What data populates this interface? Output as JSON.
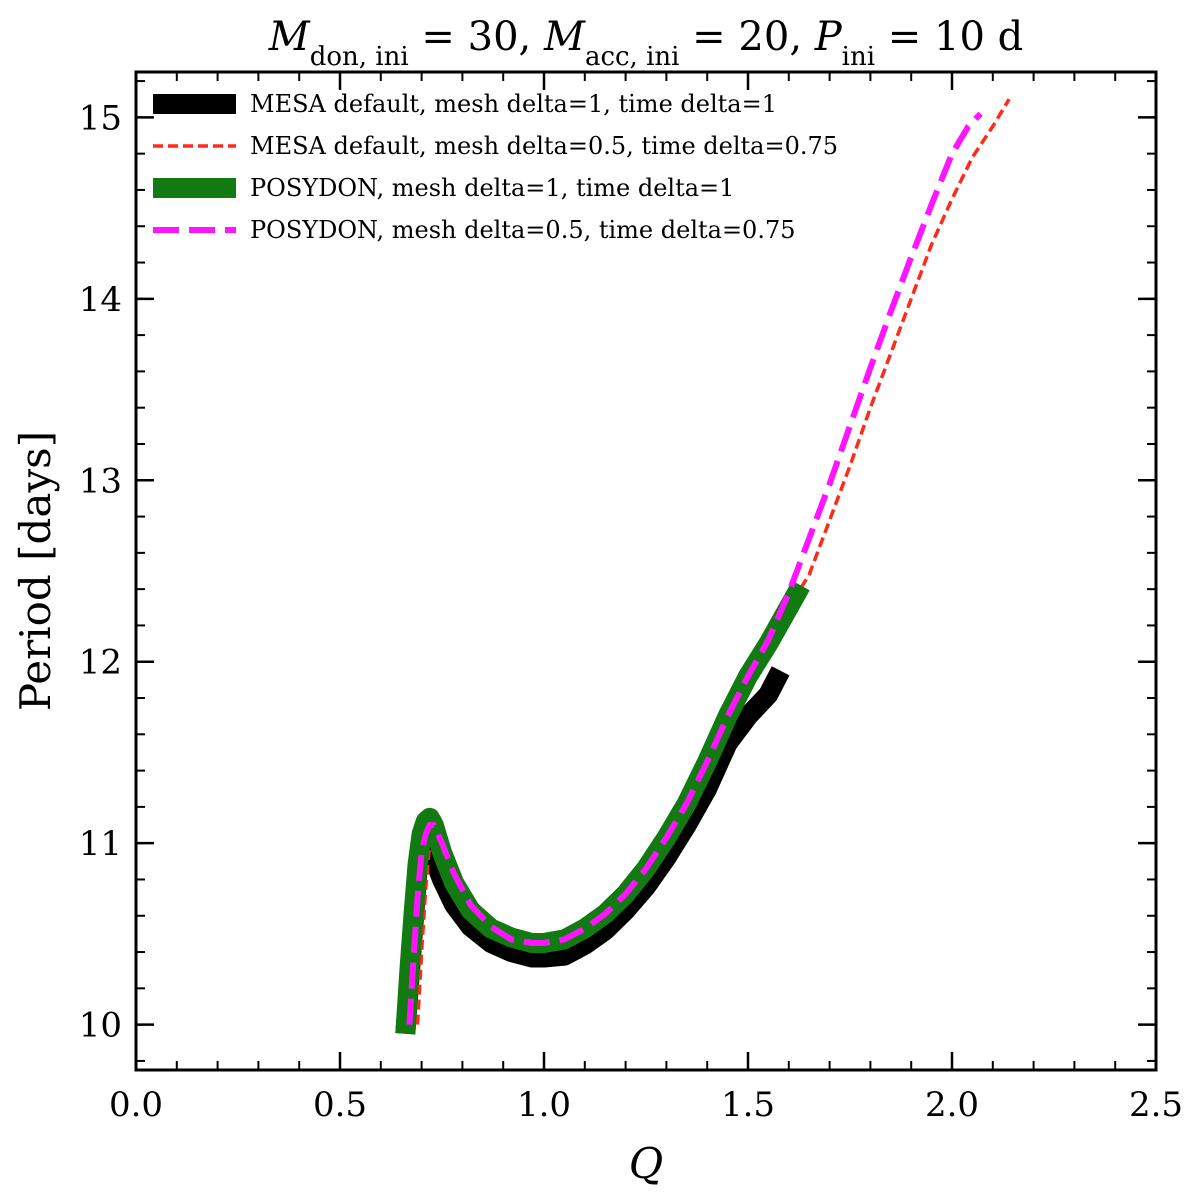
{
  "chart_data": {
    "type": "line",
    "title": {
      "sym1": "M",
      "sub1": "don, ini",
      "val1": " = 30, ",
      "sym2": "M",
      "sub2": "acc, ini",
      "val2": " = 20, ",
      "sym3": "P",
      "sub3": "ini",
      "val3": " = 10 d"
    },
    "xlabel": "Q",
    "ylabel": "Period [days]",
    "xlim": [
      0.0,
      2.5
    ],
    "ylim": [
      9.75,
      15.25
    ],
    "xticks": [
      0.0,
      0.5,
      1.0,
      1.5,
      2.0,
      2.5
    ],
    "xtick_labels": [
      "0.0",
      "0.5",
      "1.0",
      "1.5",
      "2.0",
      "2.5"
    ],
    "yticks": [
      10,
      11,
      12,
      13,
      14,
      15
    ],
    "ytick_labels": [
      "10",
      "11",
      "12",
      "13",
      "14",
      "15"
    ],
    "x_minor_step": 0.1,
    "y_minor_step": 0.2,
    "legend_position": "upper-left",
    "series": [
      {
        "name": "MESA default, mesh delta=1, time delta=1",
        "color": "#000000",
        "style": "solid-thick",
        "x": [
          0.66,
          0.67,
          0.68,
          0.69,
          0.7,
          0.71,
          0.72,
          0.73,
          0.75,
          0.78,
          0.82,
          0.87,
          0.92,
          0.97,
          1.0,
          1.05,
          1.1,
          1.15,
          1.2,
          1.25,
          1.3,
          1.35,
          1.4,
          1.45,
          1.5,
          1.55,
          1.58
        ],
        "y": [
          9.95,
          10.25,
          10.55,
          10.85,
          11.02,
          11.08,
          11.04,
          10.92,
          10.8,
          10.66,
          10.54,
          10.45,
          10.4,
          10.37,
          10.37,
          10.38,
          10.44,
          10.52,
          10.63,
          10.76,
          10.92,
          11.1,
          11.3,
          11.55,
          11.7,
          11.82,
          11.95
        ]
      },
      {
        "name": "MESA default, mesh delta=0.5, time delta=0.75",
        "color": "#ff2a1a",
        "style": "dashed-thin",
        "x": [
          0.69,
          0.7,
          0.71,
          0.72,
          0.73,
          0.75,
          0.78,
          0.82,
          0.87,
          0.92,
          0.97,
          1.0,
          1.05,
          1.1,
          1.15,
          1.2,
          1.25,
          1.3,
          1.35,
          1.4,
          1.45,
          1.5,
          1.55,
          1.6,
          1.65,
          1.7,
          1.75,
          1.8,
          1.85,
          1.9,
          1.95,
          2.0,
          2.05,
          2.1,
          2.14
        ],
        "y": [
          10.0,
          10.4,
          10.75,
          11.0,
          11.1,
          11.02,
          10.85,
          10.68,
          10.55,
          10.48,
          10.45,
          10.45,
          10.47,
          10.53,
          10.61,
          10.72,
          10.86,
          11.03,
          11.22,
          11.45,
          11.7,
          11.92,
          12.1,
          12.3,
          12.48,
          12.78,
          13.08,
          13.4,
          13.7,
          14.0,
          14.3,
          14.55,
          14.78,
          14.95,
          15.1
        ]
      },
      {
        "name": "POSYDON, mesh delta=1, time delta=1",
        "color": "#117a11",
        "style": "solid-thick",
        "x": [
          0.66,
          0.67,
          0.68,
          0.69,
          0.7,
          0.71,
          0.72,
          0.73,
          0.75,
          0.78,
          0.82,
          0.87,
          0.92,
          0.97,
          1.0,
          1.05,
          1.1,
          1.15,
          1.2,
          1.25,
          1.3,
          1.35,
          1.4,
          1.45,
          1.5,
          1.55,
          1.6,
          1.63
        ],
        "y": [
          9.95,
          10.3,
          10.6,
          10.88,
          11.05,
          11.12,
          11.14,
          11.1,
          10.95,
          10.78,
          10.63,
          10.53,
          10.48,
          10.45,
          10.45,
          10.47,
          10.53,
          10.61,
          10.72,
          10.86,
          11.03,
          11.22,
          11.45,
          11.7,
          11.92,
          12.1,
          12.3,
          12.42
        ]
      },
      {
        "name": "POSYDON, mesh delta=0.5, time delta=0.75",
        "color": "#ff14ff",
        "style": "dashed-thick",
        "x": [
          0.67,
          0.68,
          0.69,
          0.7,
          0.71,
          0.72,
          0.73,
          0.75,
          0.78,
          0.82,
          0.87,
          0.92,
          0.97,
          1.0,
          1.05,
          1.1,
          1.15,
          1.2,
          1.25,
          1.3,
          1.35,
          1.4,
          1.45,
          1.5,
          1.55,
          1.6,
          1.65,
          1.7,
          1.75,
          1.8,
          1.85,
          1.9,
          1.95,
          2.0,
          2.04,
          2.07
        ],
        "y": [
          10.0,
          10.35,
          10.7,
          10.95,
          11.05,
          11.1,
          11.1,
          11.0,
          10.83,
          10.66,
          10.54,
          10.47,
          10.45,
          10.45,
          10.47,
          10.53,
          10.61,
          10.72,
          10.86,
          11.03,
          11.22,
          11.45,
          11.7,
          11.92,
          12.12,
          12.38,
          12.68,
          12.98,
          13.3,
          13.62,
          13.93,
          14.23,
          14.52,
          14.8,
          14.95,
          15.02
        ]
      }
    ]
  }
}
